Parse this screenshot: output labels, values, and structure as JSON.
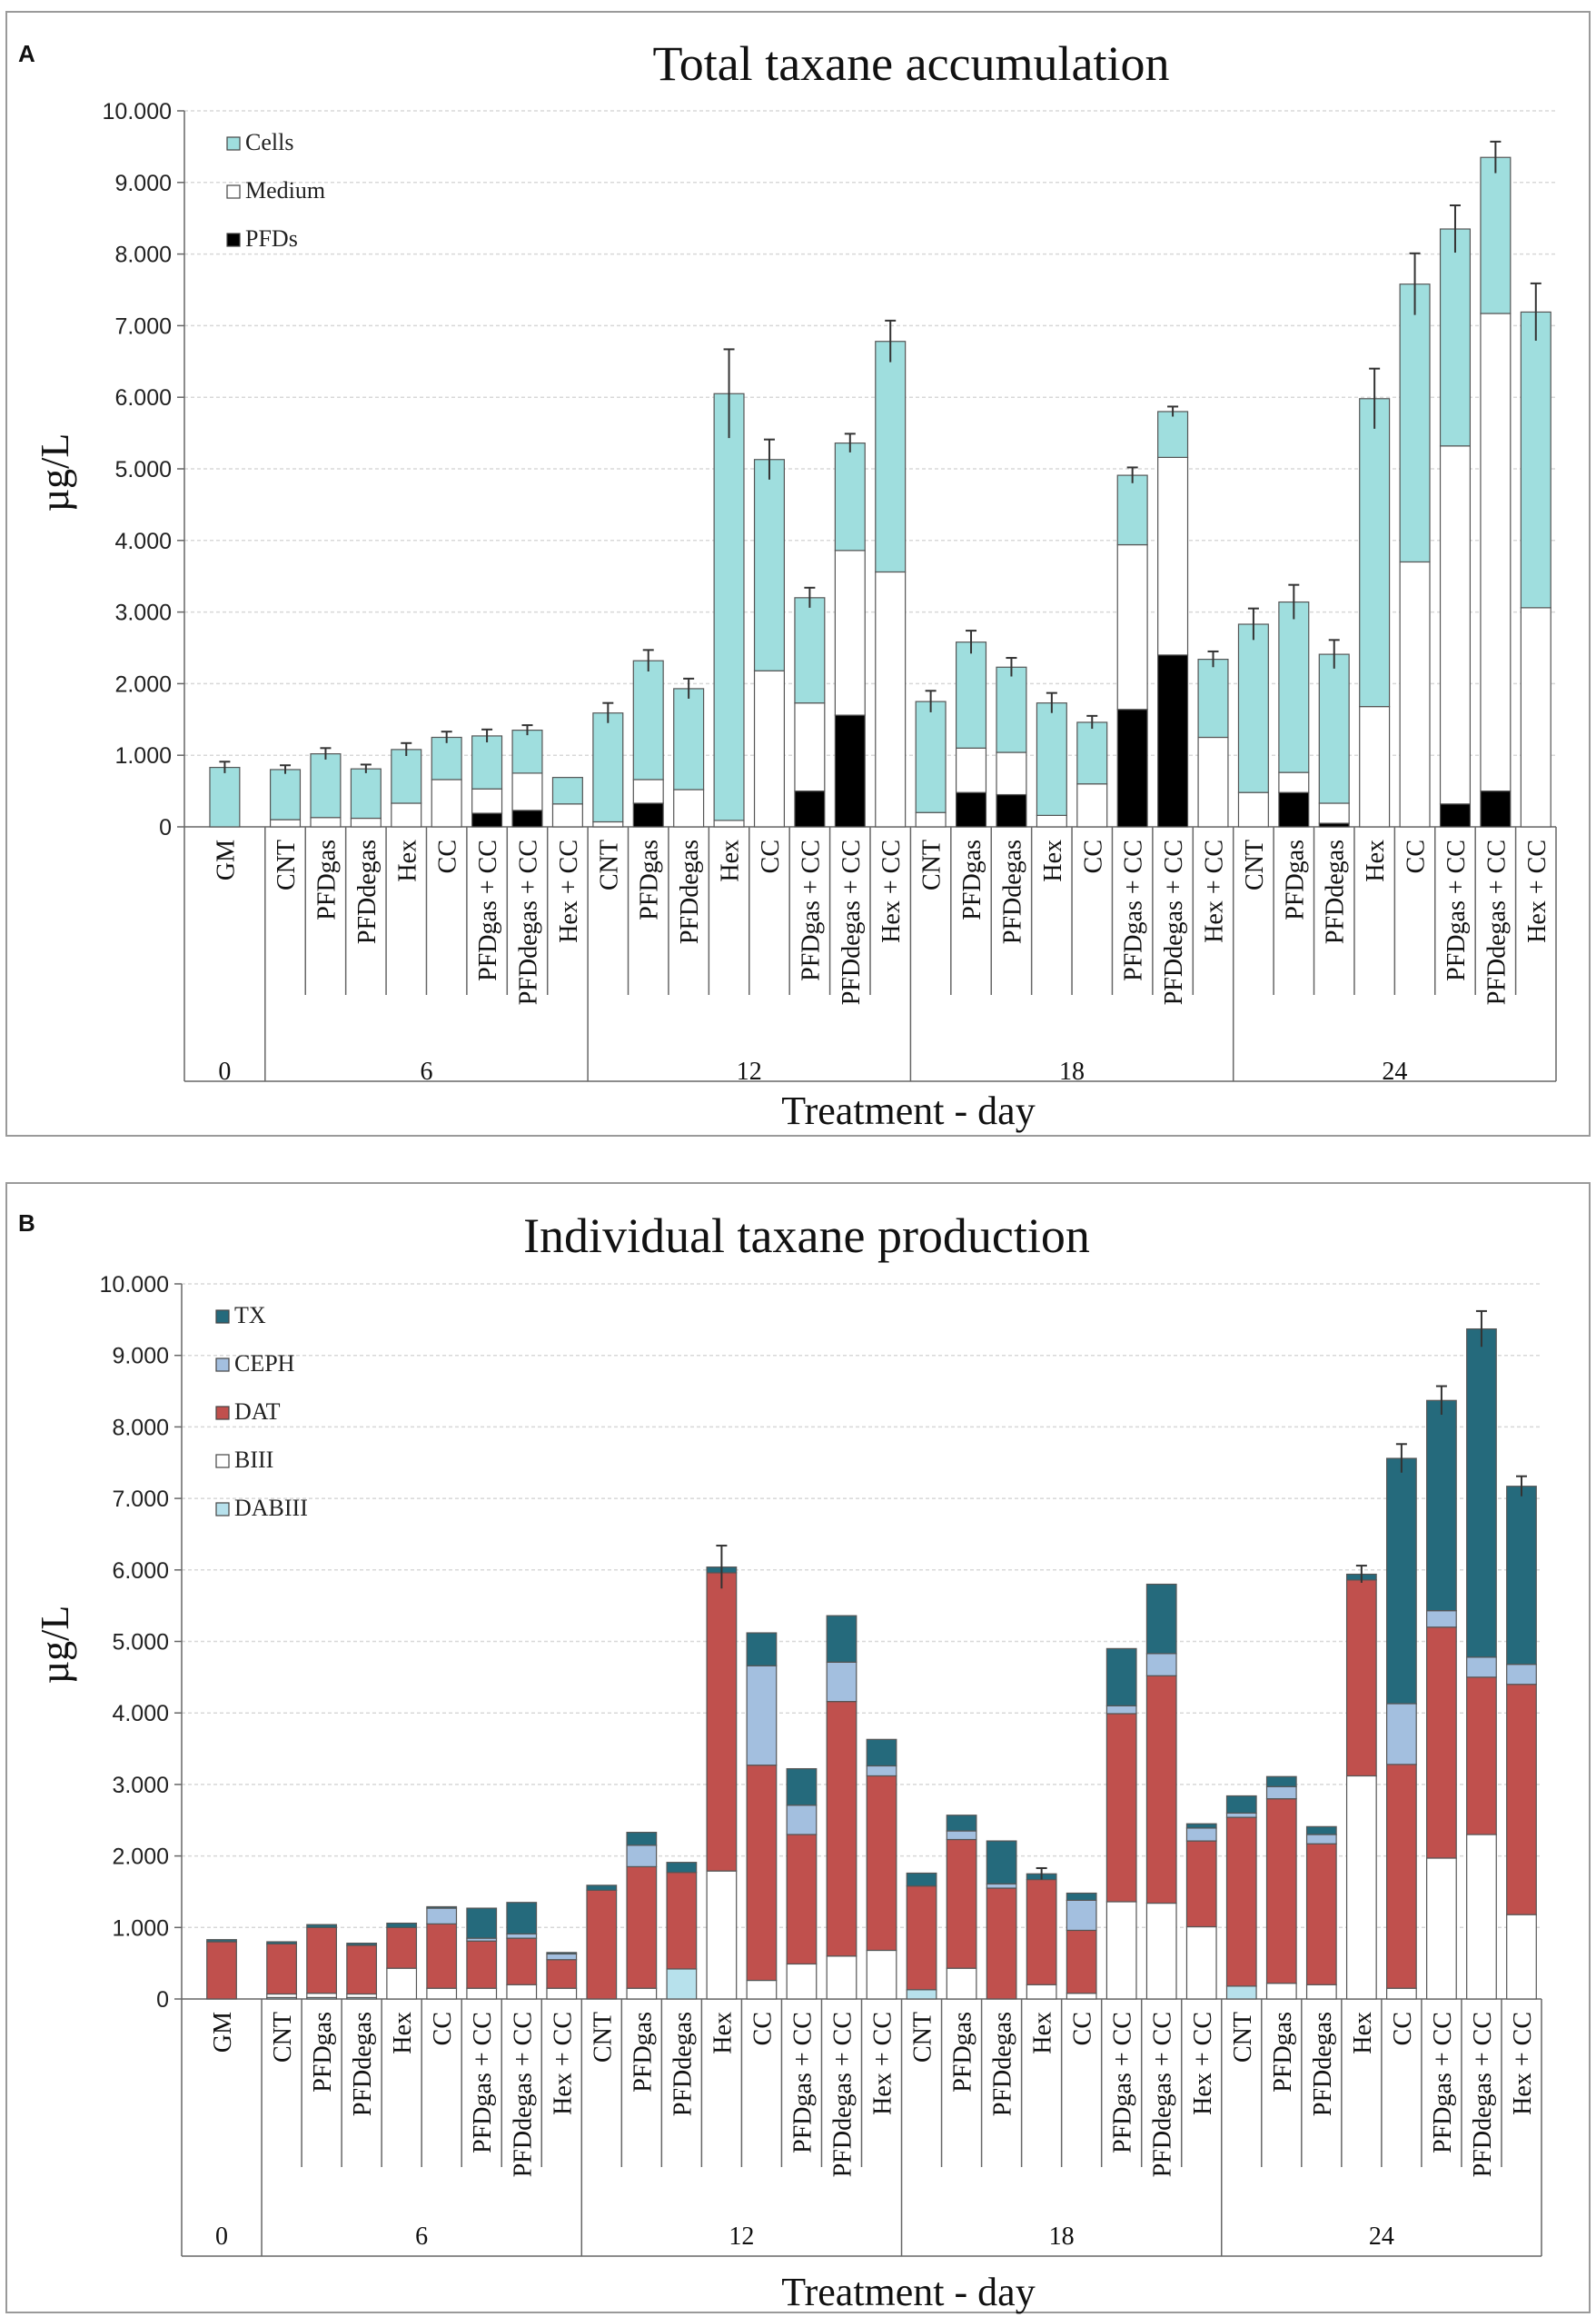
{
  "panels": [
    {
      "letter": "A",
      "title": "Total taxane accumulation",
      "ylabel": "µg/L",
      "xlabel": "Treatment - day"
    },
    {
      "letter": "B",
      "title": "Individual taxane production",
      "ylabel": "µg/L",
      "xlabel": "Treatment - day"
    }
  ],
  "colors": {
    "Cells": "#9fdede",
    "Medium": "#ffffff",
    "PFDs": "#000000",
    "TX": "#256a7c",
    "CEPH": "#a3bfdf",
    "DAT": "#c0504d",
    "BIII": "#ffffff",
    "DABIII": "#b7e1ec"
  },
  "chart_data": [
    {
      "type": "bar",
      "stacked": true,
      "title": "Total taxane accumulation",
      "xlabel": "Treatment - day",
      "ylabel": "µg/L",
      "ylim": [
        0,
        10000
      ],
      "yticks": [
        "0",
        "1.000",
        "2.000",
        "3.000",
        "4.000",
        "5.000",
        "6.000",
        "7.000",
        "8.000",
        "9.000",
        "10.000"
      ],
      "legend_position": "top-left",
      "groups": [
        {
          "day": "0",
          "categories": [
            "GM"
          ]
        },
        {
          "day": "6",
          "categories": [
            "CNT",
            "PFDgas",
            "PFDdegas",
            "Hex",
            "CC",
            "PFDgas + CC",
            "PFDdegas + CC",
            "Hex + CC"
          ]
        },
        {
          "day": "12",
          "categories": [
            "CNT",
            "PFDgas",
            "PFDdegas",
            "Hex",
            "CC",
            "PFDgas + CC",
            "PFDdegas + CC",
            "Hex + CC"
          ]
        },
        {
          "day": "18",
          "categories": [
            "CNT",
            "PFDgas",
            "PFDdegas",
            "Hex",
            "CC",
            "PFDgas + CC",
            "PFDdegas + CC",
            "Hex + CC"
          ]
        },
        {
          "day": "24",
          "categories": [
            "CNT",
            "PFDgas",
            "PFDdegas",
            "Hex",
            "CC",
            "PFDgas + CC",
            "PFDdegas + CC",
            "Hex + CC"
          ]
        }
      ],
      "series": [
        {
          "name": "PFDs",
          "values": [
            0,
            0,
            0,
            0,
            0,
            0,
            190,
            230,
            0,
            0,
            330,
            0,
            0,
            0,
            500,
            1560,
            0,
            0,
            480,
            450,
            0,
            0,
            1640,
            2400,
            0,
            0,
            480,
            50,
            0,
            0,
            320,
            500,
            0
          ]
        },
        {
          "name": "Medium",
          "values": [
            0,
            100,
            130,
            120,
            330,
            660,
            340,
            520,
            320,
            70,
            330,
            520,
            90,
            2180,
            1230,
            2300,
            3560,
            200,
            620,
            590,
            160,
            600,
            2300,
            2760,
            1250,
            480,
            280,
            280,
            1680,
            3700,
            5000,
            6670,
            3060
          ]
        },
        {
          "name": "Cells",
          "values": [
            830,
            700,
            890,
            690,
            750,
            590,
            740,
            600,
            370,
            1520,
            1660,
            1410,
            5960,
            2950,
            1470,
            1500,
            3220,
            1550,
            1480,
            1190,
            1570,
            860,
            970,
            640,
            1090,
            2350,
            2380,
            2080,
            4300,
            3880,
            3030,
            2180,
            4130
          ]
        }
      ],
      "error": [
        80,
        60,
        80,
        60,
        90,
        80,
        90,
        70,
        0,
        140,
        150,
        140,
        620,
        280,
        140,
        130,
        290,
        150,
        160,
        130,
        140,
        90,
        110,
        70,
        110,
        220,
        240,
        200,
        420,
        430,
        330,
        220,
        400
      ]
    },
    {
      "type": "bar",
      "stacked": true,
      "title": "Individual taxane production",
      "xlabel": "Treatment - day",
      "ylabel": "µg/L",
      "ylim": [
        0,
        10000
      ],
      "yticks": [
        "0",
        "1.000",
        "2.000",
        "3.000",
        "4.000",
        "5.000",
        "6.000",
        "7.000",
        "8.000",
        "9.000",
        "10.000"
      ],
      "legend_position": "top-left",
      "groups": [
        {
          "day": "0",
          "categories": [
            "GM"
          ]
        },
        {
          "day": "6",
          "categories": [
            "CNT",
            "PFDgas",
            "PFDdegas",
            "Hex",
            "CC",
            "PFDgas + CC",
            "PFDdegas + CC",
            "Hex + CC"
          ]
        },
        {
          "day": "12",
          "categories": [
            "CNT",
            "PFDgas",
            "PFDdegas",
            "Hex",
            "CC",
            "PFDgas + CC",
            "PFDdegas + CC",
            "Hex + CC"
          ]
        },
        {
          "day": "18",
          "categories": [
            "CNT",
            "PFDgas",
            "PFDdegas",
            "Hex",
            "CC",
            "PFDgas + CC",
            "PFDdegas + CC",
            "Hex + CC"
          ]
        },
        {
          "day": "24",
          "categories": [
            "CNT",
            "PFDgas",
            "PFDdegas",
            "Hex",
            "CC",
            "PFDgas + CC",
            "PFDdegas + CC",
            "Hex + CC"
          ]
        }
      ],
      "series": [
        {
          "name": "DABIII",
          "values": [
            0,
            20,
            20,
            20,
            0,
            0,
            0,
            0,
            0,
            0,
            0,
            420,
            0,
            0,
            0,
            0,
            0,
            130,
            0,
            0,
            0,
            0,
            0,
            0,
            0,
            180,
            0,
            0,
            0,
            0,
            0,
            0,
            0
          ]
        },
        {
          "name": "BIII",
          "values": [
            0,
            50,
            60,
            50,
            430,
            150,
            150,
            200,
            150,
            0,
            150,
            0,
            1790,
            260,
            490,
            600,
            680,
            0,
            430,
            0,
            200,
            80,
            1360,
            1340,
            1010,
            0,
            220,
            200,
            3120,
            150,
            1970,
            2300,
            1180
          ]
        },
        {
          "name": "DAT",
          "values": [
            800,
            700,
            920,
            680,
            570,
            900,
            660,
            650,
            400,
            1520,
            1700,
            1350,
            4170,
            3010,
            1810,
            3560,
            2440,
            1450,
            1800,
            1550,
            1470,
            880,
            2630,
            3180,
            1200,
            2360,
            2580,
            1970,
            2740,
            3130,
            3230,
            2200,
            3220
          ]
        },
        {
          "name": "CEPH",
          "values": [
            0,
            0,
            0,
            0,
            0,
            220,
            40,
            60,
            80,
            0,
            300,
            0,
            0,
            1390,
            410,
            550,
            140,
            0,
            120,
            60,
            0,
            420,
            110,
            310,
            180,
            60,
            170,
            130,
            0,
            850,
            230,
            280,
            280
          ]
        },
        {
          "name": "TX",
          "values": [
            30,
            30,
            40,
            30,
            60,
            20,
            420,
            440,
            20,
            70,
            180,
            140,
            80,
            460,
            510,
            650,
            370,
            180,
            220,
            600,
            80,
            100,
            800,
            970,
            60,
            240,
            140,
            110,
            80,
            3430,
            2940,
            4590,
            2490
          ]
        }
      ],
      "error": [
        0,
        0,
        0,
        0,
        0,
        0,
        0,
        0,
        0,
        0,
        0,
        0,
        300,
        0,
        0,
        0,
        0,
        0,
        0,
        0,
        80,
        0,
        0,
        0,
        0,
        0,
        0,
        0,
        120,
        200,
        200,
        250,
        140
      ]
    }
  ]
}
